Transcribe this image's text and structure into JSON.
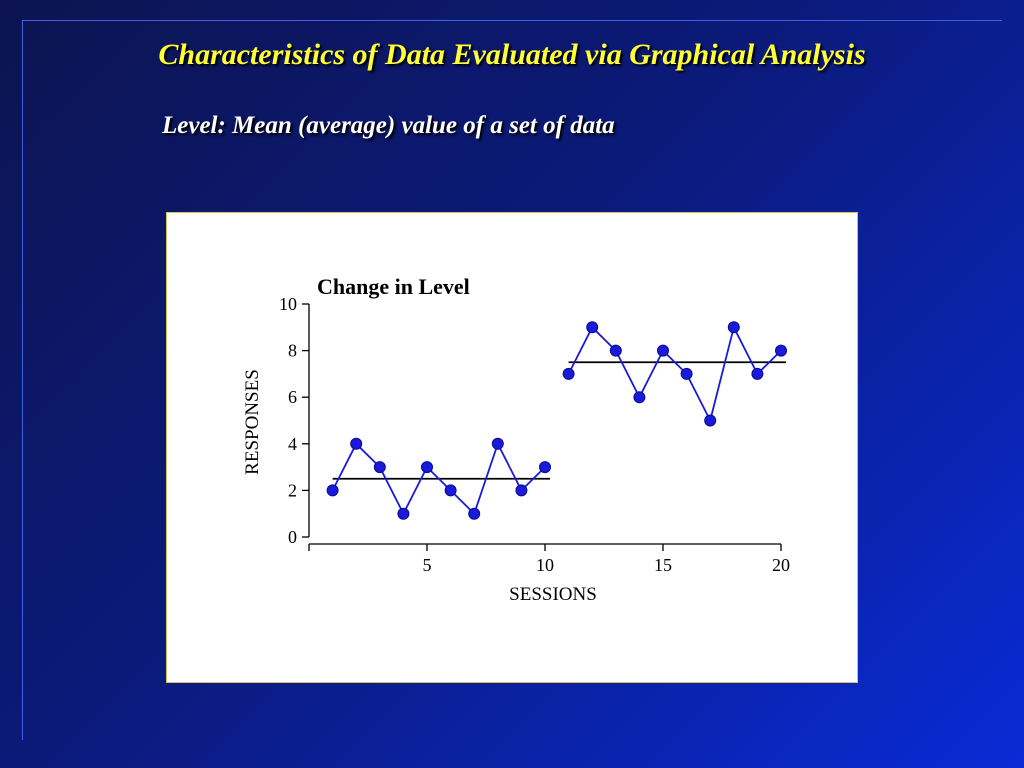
{
  "slide": {
    "title": "Characteristics of Data Evaluated via Graphical Analysis",
    "subtitle": "Level: Mean (average) value of a set of data"
  },
  "colors": {
    "title": "#ffff33",
    "series": "#1a1adb",
    "mean_line": "#000000"
  },
  "chart_data": {
    "type": "line",
    "title": "Change in Level",
    "xlabel": "SESSIONS",
    "ylabel": "RESPONSES",
    "xlim": [
      0,
      20
    ],
    "ylim": [
      0,
      10
    ],
    "xticks": [
      5,
      10,
      15,
      20
    ],
    "yticks": [
      0,
      2,
      4,
      6,
      8,
      10
    ],
    "grid": false,
    "series": [
      {
        "x": [
          1,
          2,
          3,
          4,
          5,
          6,
          7,
          8,
          9,
          10
        ],
        "values": [
          2,
          4,
          3,
          1,
          3,
          2,
          1,
          4,
          2,
          3
        ]
      },
      {
        "x": [
          11,
          12,
          13,
          14,
          15,
          16,
          17,
          18,
          19,
          20
        ],
        "values": [
          7,
          9,
          8,
          6,
          8,
          7,
          5,
          9,
          7,
          8
        ]
      }
    ],
    "mean_lines": [
      {
        "x": [
          1,
          10
        ],
        "value": 2.5
      },
      {
        "x": [
          11,
          20
        ],
        "value": 7.5
      }
    ]
  }
}
